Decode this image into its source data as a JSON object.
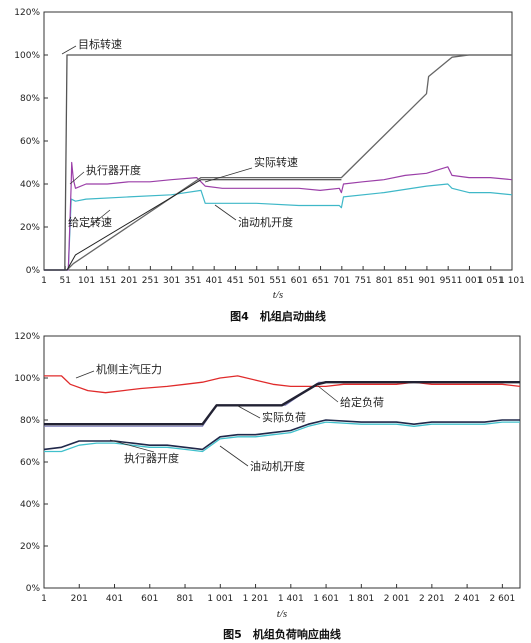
{
  "chart_data": [
    {
      "type": "line",
      "caption": "图4　机组启动曲线",
      "xlabel": "t/s",
      "ylabel": "",
      "x_ticks": [
        "1",
        "51",
        "101",
        "151",
        "201",
        "251",
        "301",
        "351",
        "401",
        "451",
        "501",
        "551",
        "601",
        "651",
        "701",
        "751",
        "801",
        "851",
        "901",
        "951",
        "1 001",
        "1 051",
        "1 101"
      ],
      "y_ticks": [
        "0%",
        "20%",
        "40%",
        "60%",
        "80%",
        "100%",
        "120%"
      ],
      "xlim": [
        1,
        1101
      ],
      "ylim": [
        0,
        120
      ],
      "grid": false,
      "series": [
        {
          "name": "目标转速",
          "color": "#555555",
          "width": 1.3,
          "points": [
            [
              1,
              0
            ],
            [
              50,
              0
            ],
            [
              55,
              100
            ],
            [
              1101,
              100
            ]
          ]
        },
        {
          "name": "实际转速",
          "color": "#666666",
          "width": 1.3,
          "points": [
            [
              1,
              0
            ],
            [
              55,
              0
            ],
            [
              70,
              3
            ],
            [
              370,
              43
            ],
            [
              700,
              43
            ],
            [
              900,
              82
            ],
            [
              905,
              90
            ],
            [
              960,
              99
            ],
            [
              1000,
              100
            ],
            [
              1101,
              100
            ]
          ]
        },
        {
          "name": "执行器开度",
          "color": "#9b3fa8",
          "width": 1.2,
          "points": [
            [
              1,
              0
            ],
            [
              58,
              0
            ],
            [
              65,
              40
            ],
            [
              66,
              50
            ],
            [
              70,
              42
            ],
            [
              75,
              38
            ],
            [
              100,
              40
            ],
            [
              150,
              40
            ],
            [
              200,
              41
            ],
            [
              250,
              41
            ],
            [
              300,
              42
            ],
            [
              360,
              43
            ],
            [
              380,
              39
            ],
            [
              420,
              38
            ],
            [
              480,
              38
            ],
            [
              540,
              38
            ],
            [
              600,
              38
            ],
            [
              650,
              37
            ],
            [
              695,
              38
            ],
            [
              700,
              36
            ],
            [
              705,
              40
            ],
            [
              750,
              41
            ],
            [
              800,
              42
            ],
            [
              850,
              44
            ],
            [
              900,
              45
            ],
            [
              950,
              48
            ],
            [
              960,
              44
            ],
            [
              1000,
              43
            ],
            [
              1050,
              43
            ],
            [
              1101,
              42
            ]
          ]
        },
        {
          "name": "给定转速",
          "color": "#222222",
          "width": 1.0,
          "points": [
            [
              1,
              0
            ],
            [
              55,
              0
            ],
            [
              75,
              7
            ],
            [
              370,
              42
            ],
            [
              700,
              42
            ]
          ]
        },
        {
          "name": "油动机开度",
          "color": "#3fb8c8",
          "width": 1.2,
          "points": [
            [
              1,
              0
            ],
            [
              58,
              0
            ],
            [
              65,
              33
            ],
            [
              75,
              32
            ],
            [
              100,
              33
            ],
            [
              200,
              34
            ],
            [
              300,
              35
            ],
            [
              370,
              37
            ],
            [
              380,
              31
            ],
            [
              420,
              31
            ],
            [
              500,
              31
            ],
            [
              600,
              30
            ],
            [
              695,
              30
            ],
            [
              700,
              29
            ],
            [
              705,
              34
            ],
            [
              800,
              36
            ],
            [
              900,
              39
            ],
            [
              950,
              40
            ],
            [
              960,
              38
            ],
            [
              1000,
              36
            ],
            [
              1050,
              36
            ],
            [
              1101,
              35
            ]
          ]
        }
      ],
      "annotations": [
        {
          "text": "目标转速",
          "series": "目标转速"
        },
        {
          "text": "执行器开度",
          "series": "执行器开度"
        },
        {
          "text": "实际转速",
          "series": "实际转速"
        },
        {
          "text": "给定转速",
          "series": "给定转速"
        },
        {
          "text": "油动机开度",
          "series": "油动机开度"
        }
      ]
    },
    {
      "type": "line",
      "caption": "图5　机组负荷响应曲线",
      "xlabel": "t/s",
      "ylabel": "",
      "x_ticks": [
        "1",
        "201",
        "401",
        "601",
        "801",
        "1 001",
        "1 201",
        "1 401",
        "1 601",
        "1 801",
        "2 001",
        "2 201",
        "2 401",
        "2 601"
      ],
      "y_ticks": [
        "0%",
        "20%",
        "40%",
        "60%",
        "80%",
        "100%",
        "120%"
      ],
      "xlim": [
        1,
        2701
      ],
      "ylim": [
        0,
        120
      ],
      "grid": false,
      "series": [
        {
          "name": "机侧主汽压力",
          "color": "#e02b2b",
          "width": 1.3,
          "points": [
            [
              1,
              101
            ],
            [
              100,
              101
            ],
            [
              150,
              97
            ],
            [
              250,
              94
            ],
            [
              350,
              93
            ],
            [
              450,
              94
            ],
            [
              550,
              95
            ],
            [
              700,
              96
            ],
            [
              800,
              97
            ],
            [
              900,
              98
            ],
            [
              1000,
              100
            ],
            [
              1100,
              101
            ],
            [
              1200,
              99
            ],
            [
              1300,
              97
            ],
            [
              1400,
              96
            ],
            [
              1500,
              96
            ],
            [
              1600,
              96
            ],
            [
              1700,
              97
            ],
            [
              1800,
              97
            ],
            [
              1900,
              97
            ],
            [
              2000,
              97
            ],
            [
              2100,
              98
            ],
            [
              2200,
              97
            ],
            [
              2300,
              97
            ],
            [
              2400,
              97
            ],
            [
              2500,
              97
            ],
            [
              2600,
              97
            ],
            [
              2701,
              96
            ]
          ]
        },
        {
          "name": "实际负荷",
          "color": "#222233",
          "width": 2.4,
          "points": [
            [
              1,
              78
            ],
            [
              200,
              78
            ],
            [
              400,
              78
            ],
            [
              600,
              78
            ],
            [
              800,
              78
            ],
            [
              900,
              78
            ],
            [
              980,
              87
            ],
            [
              1100,
              87
            ],
            [
              1200,
              87
            ],
            [
              1350,
              87
            ],
            [
              1450,
              92
            ],
            [
              1550,
              97
            ],
            [
              1600,
              98
            ],
            [
              1800,
              98
            ],
            [
              2000,
              98
            ],
            [
              2200,
              98
            ],
            [
              2400,
              98
            ],
            [
              2600,
              98
            ],
            [
              2701,
              98
            ]
          ]
        },
        {
          "name": "给定负荷",
          "color": "#7a7ab8",
          "width": 1.0,
          "points": [
            [
              1,
              77
            ],
            [
              900,
              77
            ],
            [
              980,
              87
            ],
            [
              1370,
              87
            ],
            [
              1560,
              98
            ],
            [
              2701,
              98
            ]
          ]
        },
        {
          "name": "执行器开度",
          "color": "#20284a",
          "width": 1.6,
          "points": [
            [
              1,
              66
            ],
            [
              100,
              67
            ],
            [
              200,
              70
            ],
            [
              300,
              70
            ],
            [
              400,
              70
            ],
            [
              500,
              69
            ],
            [
              600,
              68
            ],
            [
              700,
              68
            ],
            [
              800,
              67
            ],
            [
              900,
              66
            ],
            [
              1000,
              72
            ],
            [
              1100,
              73
            ],
            [
              1200,
              73
            ],
            [
              1300,
              74
            ],
            [
              1400,
              75
            ],
            [
              1500,
              78
            ],
            [
              1600,
              80
            ],
            [
              1800,
              79
            ],
            [
              2000,
              79
            ],
            [
              2100,
              78
            ],
            [
              2200,
              79
            ],
            [
              2300,
              79
            ],
            [
              2400,
              79
            ],
            [
              2500,
              79
            ],
            [
              2600,
              80
            ],
            [
              2701,
              80
            ]
          ]
        },
        {
          "name": "油动机开度",
          "color": "#40c0cc",
          "width": 1.3,
          "points": [
            [
              1,
              65
            ],
            [
              100,
              65
            ],
            [
              200,
              68
            ],
            [
              300,
              69
            ],
            [
              400,
              69
            ],
            [
              500,
              68
            ],
            [
              600,
              67
            ],
            [
              700,
              67
            ],
            [
              800,
              66
            ],
            [
              900,
              65
            ],
            [
              1000,
              71
            ],
            [
              1100,
              72
            ],
            [
              1200,
              72
            ],
            [
              1300,
              73
            ],
            [
              1400,
              74
            ],
            [
              1500,
              77
            ],
            [
              1600,
              79
            ],
            [
              1800,
              78
            ],
            [
              2000,
              78
            ],
            [
              2100,
              77
            ],
            [
              2200,
              78
            ],
            [
              2300,
              78
            ],
            [
              2400,
              78
            ],
            [
              2500,
              78
            ],
            [
              2600,
              79
            ],
            [
              2701,
              79
            ]
          ]
        }
      ],
      "annotations": [
        {
          "text": "机侧主汽压力",
          "series": "机侧主汽压力"
        },
        {
          "text": "实际负荷",
          "series": "实际负荷"
        },
        {
          "text": "给定负荷",
          "series": "给定负荷"
        },
        {
          "text": "执行器开度",
          "series": "执行器开度"
        },
        {
          "text": "油动机开度",
          "series": "油动机开度"
        }
      ]
    }
  ]
}
